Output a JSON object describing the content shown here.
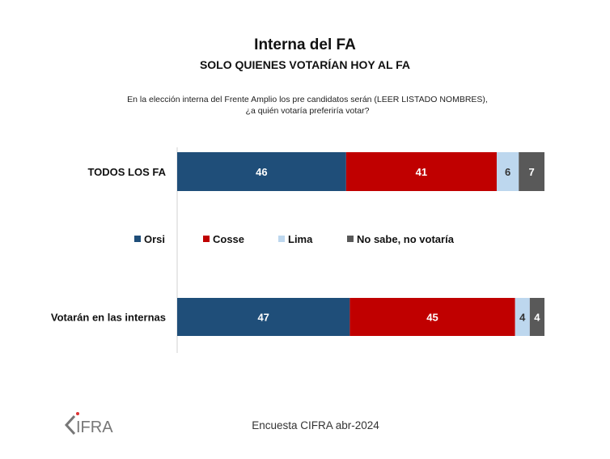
{
  "chart_data": {
    "type": "bar",
    "orientation": "horizontal-stacked",
    "title": "Interna del FA",
    "subtitle": "SOLO QUIENES VOTARÍAN HOY AL FA",
    "question": [
      "En la elección interna del Frente Amplio los pre candidatos serán (LEER LISTADO NOMBRES),",
      "¿a quién votaría preferiría votar?"
    ],
    "categories": [
      "TODOS LOS FA",
      "Votarán en las internas"
    ],
    "series": [
      {
        "name": "Orsi",
        "color": "#1f4e79",
        "label_color": "#ffffff",
        "values": [
          46,
          47
        ]
      },
      {
        "name": "Cosse",
        "color": "#c00000",
        "label_color": "#ffffff",
        "values": [
          41,
          45
        ]
      },
      {
        "name": "Lima",
        "color": "#bdd7ee",
        "label_color": "#333333",
        "values": [
          6,
          4
        ]
      },
      {
        "name": "No sabe, no votaría",
        "color": "#595959",
        "label_color": "#ffffff",
        "values": [
          7,
          4
        ]
      }
    ],
    "xlim": [
      0,
      100
    ],
    "legend": "center",
    "xlabel": "",
    "ylabel": ""
  },
  "footer": "Encuesta CIFRA abr-2024",
  "logo_text": "CIFRA"
}
